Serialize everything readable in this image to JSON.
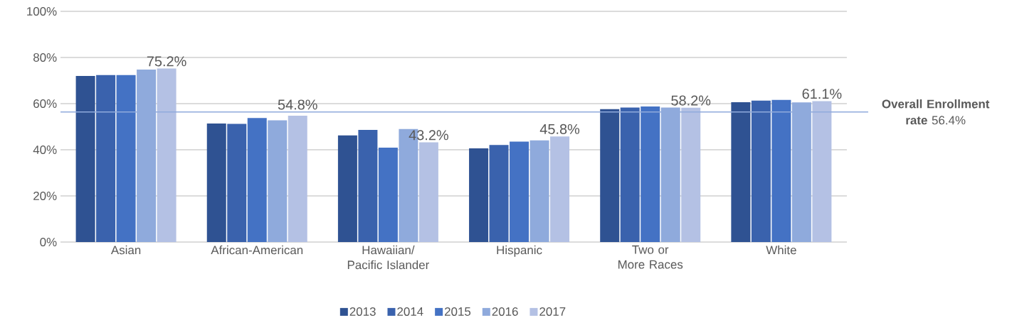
{
  "chart_data": {
    "type": "bar",
    "categories": [
      "Asian",
      "African-American",
      "Hawaiian/ Pacific Islander",
      "Hispanic",
      "Two or More Races",
      "White"
    ],
    "series": [
      {
        "name": "2013",
        "color": "#2f5292",
        "values": [
          72.0,
          51.4,
          46.2,
          40.6,
          57.6,
          60.6
        ]
      },
      {
        "name": "2014",
        "color": "#3a62ad",
        "values": [
          72.4,
          51.2,
          48.6,
          42.1,
          58.3,
          61.3
        ]
      },
      {
        "name": "2015",
        "color": "#4472c4",
        "values": [
          72.4,
          53.8,
          40.9,
          43.5,
          58.8,
          61.6
        ]
      },
      {
        "name": "2016",
        "color": "#8faadc",
        "values": [
          74.8,
          52.8,
          49.0,
          44.1,
          58.3,
          60.5
        ]
      },
      {
        "name": "2017",
        "color": "#b4c1e4",
        "values": [
          75.2,
          54.8,
          43.2,
          45.8,
          58.2,
          61.1
        ],
        "value_labels": [
          "75.2%",
          "54.8%",
          "43.2%",
          "45.8%",
          "58.2%",
          "61.1%"
        ]
      }
    ],
    "ylim": [
      0,
      100
    ],
    "yticks": [
      {
        "value": 0,
        "label": "0%"
      },
      {
        "value": 20,
        "label": "20%"
      },
      {
        "value": 40,
        "label": "40%"
      },
      {
        "value": 60,
        "label": "60%"
      },
      {
        "value": 80,
        "label": "80%"
      },
      {
        "value": 100,
        "label": "100%"
      }
    ],
    "grid": "y",
    "legend": "bottom",
    "ref_lines": [
      {
        "axis": "y",
        "value": 56.4,
        "label": "**Overall Enrollment rate** 56.4%",
        "color": "#8faadc"
      }
    ]
  }
}
